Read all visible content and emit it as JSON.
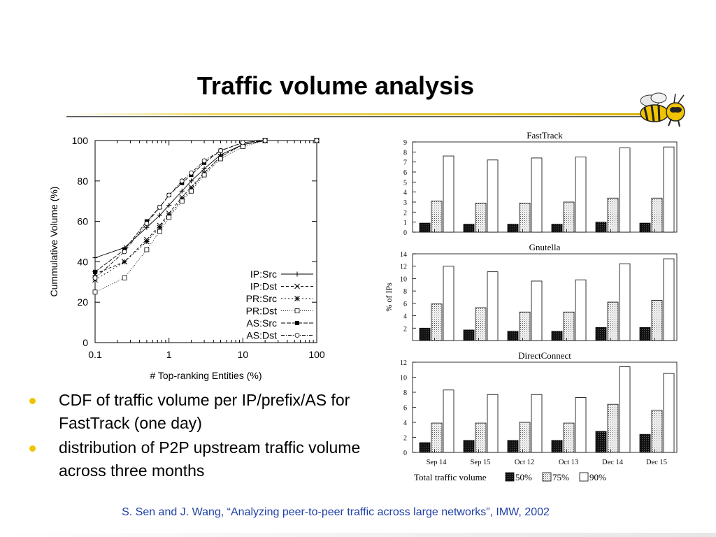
{
  "slide": {
    "title": "Traffic volume analysis",
    "bullets": [
      "CDF of traffic volume per IP/prefix/AS for FastTrack (one day)",
      "distribution of P2P upstream traffic volume across three months"
    ],
    "citation": "S. Sen and J. Wang, “Analyzing peer-to-peer traffic across large networks”, IMW, 2002",
    "accent_color": "#f0c400",
    "citation_color": "#1f3fa6",
    "logo_icon": "yellow-jacket-bee-icon"
  },
  "chart_data": [
    {
      "type": "line",
      "xlabel": "# Top-ranking Entities (%)",
      "ylabel": "Cummulative Volume (%)",
      "xscale": "log",
      "xlim": [
        0.1,
        100
      ],
      "ylim": [
        0,
        100
      ],
      "xticks": [
        "0.1",
        "1",
        "10",
        "100"
      ],
      "yticks": [
        "0",
        "20",
        "40",
        "60",
        "80",
        "100"
      ],
      "legend_position": "bottom-right",
      "series": [
        {
          "name": "IP:Src",
          "marker": "+",
          "x": [
            0.1,
            0.25,
            0.5,
            0.75,
            1,
            1.5,
            2,
            3,
            5,
            10,
            20,
            100
          ],
          "y": [
            42,
            47,
            57,
            63,
            68,
            75,
            80,
            86,
            93,
            98,
            100,
            100
          ]
        },
        {
          "name": "IP:Dst",
          "marker": "x",
          "x": [
            0.1,
            0.25,
            0.5,
            0.75,
            1,
            1.5,
            2,
            3,
            5,
            10,
            20,
            100
          ],
          "y": [
            34,
            40,
            51,
            58,
            64,
            72,
            77,
            84,
            92,
            98,
            100,
            100
          ]
        },
        {
          "name": "PR:Src",
          "marker": "*",
          "x": [
            0.1,
            0.25,
            0.5,
            0.75,
            1,
            1.5,
            2,
            3,
            5,
            10,
            20,
            100
          ],
          "y": [
            31,
            40,
            50,
            57,
            63,
            71,
            76,
            84,
            92,
            98,
            100,
            100
          ]
        },
        {
          "name": "PR:Dst",
          "marker": "square-open",
          "x": [
            0.1,
            0.25,
            0.5,
            0.75,
            1,
            1.5,
            2,
            3,
            5,
            10,
            20,
            100
          ],
          "y": [
            25,
            32,
            46,
            55,
            62,
            70,
            75,
            83,
            91,
            97,
            100,
            100
          ]
        },
        {
          "name": "AS:Src",
          "marker": "square-filled",
          "x": [
            0.1,
            0.25,
            0.5,
            0.75,
            1,
            1.5,
            2,
            3,
            5,
            10,
            20,
            100
          ],
          "y": [
            35,
            46,
            60,
            67,
            73,
            79,
            83,
            89,
            95,
            99,
            100,
            100
          ]
        },
        {
          "name": "AS:Dst",
          "marker": "circle-open",
          "x": [
            0.1,
            0.25,
            0.5,
            0.75,
            1,
            1.5,
            2,
            3,
            5,
            10,
            20,
            100
          ],
          "y": [
            32,
            45,
            59,
            67,
            73,
            80,
            84,
            90,
            95,
            99,
            100,
            100
          ]
        }
      ]
    },
    {
      "type": "bar",
      "title": "FastTrack",
      "ylabel": "% of IPs",
      "ylim": [
        0,
        9
      ],
      "yticks": [
        "0",
        "1",
        "2",
        "3",
        "4",
        "5",
        "6",
        "7",
        "8",
        "9"
      ],
      "categories": [
        "Sep 14",
        "Sep 15",
        "Oct 12",
        "Oct 13",
        "Dec 14",
        "Dec 15"
      ],
      "series": [
        {
          "name": "50%",
          "values": [
            0.9,
            0.8,
            0.8,
            0.8,
            1.0,
            0.9
          ]
        },
        {
          "name": "75%",
          "values": [
            3.1,
            2.9,
            2.9,
            3.0,
            3.4,
            3.4
          ]
        },
        {
          "name": "90%",
          "values": [
            7.6,
            7.2,
            7.4,
            7.5,
            8.4,
            8.5
          ]
        }
      ]
    },
    {
      "type": "bar",
      "title": "Gnutella",
      "ylabel": "% of IPs",
      "ylim": [
        0,
        14
      ],
      "yticks": [
        "2",
        "4",
        "6",
        "8",
        "10",
        "12",
        "14"
      ],
      "categories": [
        "Sep 14",
        "Sep 15",
        "Oct 12",
        "Oct 13",
        "Dec 14",
        "Dec 15"
      ],
      "series": [
        {
          "name": "50%",
          "values": [
            2.0,
            1.7,
            1.5,
            1.5,
            2.1,
            2.1
          ]
        },
        {
          "name": "75%",
          "values": [
            5.9,
            5.3,
            4.6,
            4.6,
            6.2,
            6.5
          ]
        },
        {
          "name": "90%",
          "values": [
            12.0,
            11.1,
            9.6,
            9.8,
            12.4,
            13.2
          ]
        }
      ]
    },
    {
      "type": "bar",
      "title": "DirectConnect",
      "ylabel": "% of IPs",
      "ylim": [
        0,
        12
      ],
      "yticks": [
        "0",
        "2",
        "4",
        "6",
        "8",
        "10",
        "12"
      ],
      "categories": [
        "Sep 14",
        "Sep 15",
        "Oct 12",
        "Oct 13",
        "Dec 14",
        "Dec 15"
      ],
      "legend_title": "Total traffic volume",
      "series": [
        {
          "name": "50%",
          "values": [
            1.3,
            1.6,
            1.6,
            1.6,
            2.8,
            2.4
          ]
        },
        {
          "name": "75%",
          "values": [
            3.9,
            3.9,
            4.0,
            3.9,
            6.4,
            5.6
          ]
        },
        {
          "name": "90%",
          "values": [
            8.3,
            7.7,
            7.7,
            7.3,
            11.4,
            10.5
          ]
        }
      ]
    }
  ]
}
